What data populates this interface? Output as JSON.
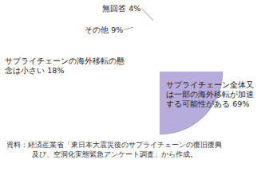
{
  "chart_data": {
    "type": "pie",
    "categories": [
      "サプライチェーン全体又は一部の海外移転が加速する可能性がある",
      "サプライチェーンの海外移転の懸念は小さい",
      "その他",
      "無回答"
    ],
    "values": [
      69,
      18,
      9,
      4
    ],
    "value_labels": [
      "69%",
      "18%",
      "9%",
      "4%"
    ],
    "colors": [
      "#b7acdb",
      "#d8ecc6",
      "#eef3c4",
      "#fbd8a2"
    ],
    "data_labels": true,
    "source": "資料：経済産業省「東日本大震災後のサプライチェーンの復旧復興及び、空洞化実態緊急アンケート調査」から作成。"
  }
}
